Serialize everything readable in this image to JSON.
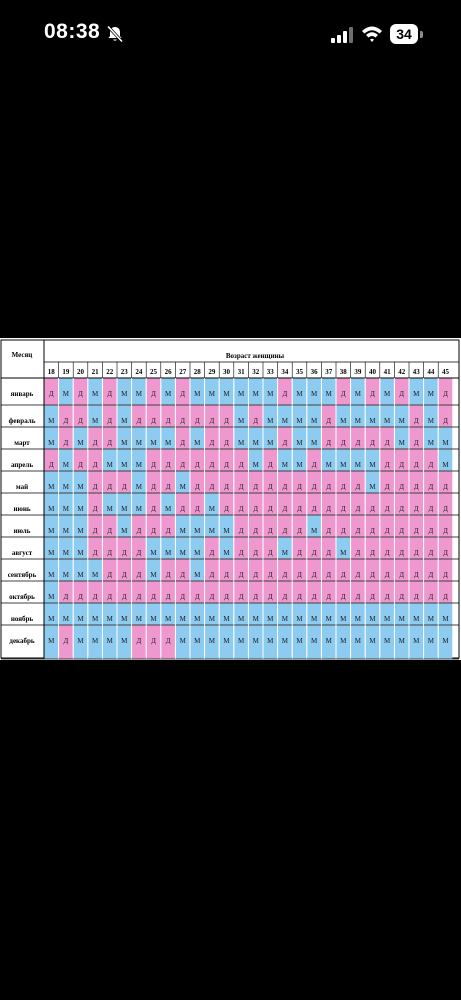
{
  "status_bar": {
    "time": "08:38",
    "battery_level": "34",
    "icons": [
      "bell-slash-icon",
      "cellular-signal-icon",
      "wifi-icon",
      "battery-icon"
    ]
  },
  "table": {
    "month_header": "Месяц",
    "age_header": "Возраст женщины",
    "ages": [
      "18",
      "19",
      "20",
      "21",
      "22",
      "23",
      "24",
      "25",
      "26",
      "27",
      "28",
      "29",
      "30",
      "31",
      "32",
      "33",
      "34",
      "35",
      "36",
      "37",
      "38",
      "39",
      "40",
      "41",
      "42",
      "43",
      "44",
      "45"
    ],
    "boy_label": "М",
    "girl_label": "Д",
    "colors": {
      "boy": "#8ecbf0",
      "girl": "#ee98cf"
    },
    "rows": [
      {
        "month": "январь",
        "values": [
          "Д",
          "М",
          "Д",
          "М",
          "Д",
          "М",
          "М",
          "Д",
          "М",
          "Д",
          "М",
          "М",
          "М",
          "М",
          "М",
          "М",
          "Д",
          "М",
          "М",
          "М",
          "Д",
          "М",
          "Д",
          "М",
          "Д",
          "М",
          "М",
          "Д"
        ]
      },
      {
        "month": "февраль",
        "values": [
          "М",
          "Д",
          "Д",
          "М",
          "Д",
          "М",
          "Д",
          "Д",
          "Д",
          "Д",
          "Д",
          "Д",
          "Д",
          "М",
          "Д",
          "М",
          "М",
          "М",
          "М",
          "Д",
          "М",
          "М",
          "М",
          "М",
          "М",
          "Д",
          "М",
          "Д"
        ]
      },
      {
        "month": "март",
        "values": [
          "М",
          "Д",
          "М",
          "Д",
          "Д",
          "М",
          "М",
          "М",
          "М",
          "Д",
          "М",
          "Д",
          "Д",
          "М",
          "М",
          "М",
          "Д",
          "М",
          "М",
          "Д",
          "Д",
          "Д",
          "Д",
          "Д",
          "М",
          "Д",
          "М",
          "М"
        ]
      },
      {
        "month": "апрель",
        "values": [
          "Д",
          "М",
          "Д",
          "Д",
          "М",
          "М",
          "М",
          "Д",
          "Д",
          "Д",
          "Д",
          "Д",
          "Д",
          "Д",
          "М",
          "Д",
          "М",
          "М",
          "Д",
          "М",
          "М",
          "М",
          "М",
          "Д",
          "Д",
          "Д",
          "Д",
          "М"
        ]
      },
      {
        "month": "май",
        "values": [
          "М",
          "М",
          "М",
          "Д",
          "Д",
          "Д",
          "М",
          "Д",
          "Д",
          "М",
          "Д",
          "Д",
          "Д",
          "Д",
          "Д",
          "Д",
          "Д",
          "Д",
          "Д",
          "Д",
          "Д",
          "Д",
          "М",
          "Д",
          "Д",
          "Д",
          "Д",
          "Д"
        ]
      },
      {
        "month": "июнь",
        "values": [
          "М",
          "М",
          "М",
          "Д",
          "М",
          "М",
          "М",
          "Д",
          "М",
          "Д",
          "Д",
          "М",
          "Д",
          "Д",
          "Д",
          "Д",
          "Д",
          "Д",
          "Д",
          "Д",
          "Д",
          "Д",
          "Д",
          "Д",
          "Д",
          "Д",
          "Д",
          "Д"
        ]
      },
      {
        "month": "июль",
        "values": [
          "М",
          "М",
          "М",
          "Д",
          "Д",
          "М",
          "Д",
          "Д",
          "Д",
          "М",
          "М",
          "М",
          "М",
          "Д",
          "Д",
          "Д",
          "Д",
          "Д",
          "М",
          "Д",
          "Д",
          "Д",
          "Д",
          "Д",
          "Д",
          "Д",
          "Д",
          "Д"
        ]
      },
      {
        "month": "август",
        "values": [
          "М",
          "М",
          "М",
          "Д",
          "Д",
          "Д",
          "Д",
          "М",
          "М",
          "М",
          "М",
          "Д",
          "М",
          "Д",
          "Д",
          "Д",
          "М",
          "Д",
          "Д",
          "Д",
          "М",
          "Д",
          "Д",
          "Д",
          "Д",
          "Д",
          "Д",
          "Д"
        ]
      },
      {
        "month": "сентябрь",
        "values": [
          "М",
          "М",
          "М",
          "М",
          "Д",
          "Д",
          "Д",
          "М",
          "Д",
          "Д",
          "М",
          "Д",
          "Д",
          "Д",
          "Д",
          "Д",
          "Д",
          "Д",
          "Д",
          "Д",
          "Д",
          "Д",
          "Д",
          "Д",
          "Д",
          "Д",
          "Д",
          "Д"
        ]
      },
      {
        "month": "октябрь",
        "values": [
          "М",
          "Д",
          "Д",
          "Д",
          "Д",
          "Д",
          "Д",
          "Д",
          "Д",
          "Д",
          "Д",
          "Д",
          "Д",
          "Д",
          "Д",
          "Д",
          "Д",
          "Д",
          "Д",
          "Д",
          "Д",
          "Д",
          "Д",
          "Д",
          "Д",
          "Д",
          "Д",
          "Д"
        ]
      },
      {
        "month": "ноябрь",
        "values": [
          "М",
          "М",
          "М",
          "М",
          "М",
          "М",
          "М",
          "М",
          "М",
          "М",
          "М",
          "М",
          "М",
          "М",
          "М",
          "М",
          "М",
          "М",
          "М",
          "М",
          "М",
          "М",
          "М",
          "М",
          "М",
          "М",
          "М",
          "М"
        ]
      },
      {
        "month": "декабрь",
        "values": [
          "М",
          "Д",
          "М",
          "М",
          "М",
          "М",
          "Д",
          "Д",
          "Д",
          "М",
          "М",
          "М",
          "М",
          "М",
          "М",
          "М",
          "М",
          "М",
          "М",
          "М",
          "М",
          "М",
          "М",
          "М",
          "М",
          "М",
          "М",
          "М"
        ]
      }
    ]
  }
}
